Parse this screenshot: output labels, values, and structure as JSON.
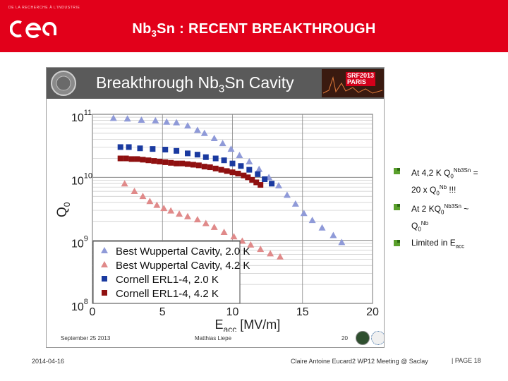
{
  "header": {
    "logo_small_text": "DE LA RECHERCHE À L'INDUSTRIE",
    "logo_text": "cea",
    "title_prefix": "Nb",
    "title_sub": "3",
    "title_suffix": "Sn : RECENT BREAKTHROUGH",
    "background_color": "#e2001a"
  },
  "slide": {
    "title_prefix": "Breakthrough Nb",
    "title_sub": "3",
    "title_suffix": "Sn Cavity",
    "badge_line1": "SRF2013",
    "badge_line2": "PARIS",
    "date": "September 25 2013",
    "author": "Matthias Liepe",
    "number": "20"
  },
  "chart_data": {
    "type": "scatter",
    "x_label": "E",
    "x_label_sub": "acc",
    "x_label_unit": "[MV/m]",
    "y_label": "Q",
    "y_label_sub": "0",
    "x_range": [
      0,
      20
    ],
    "y_log_range": [
      8,
      11
    ],
    "x_ticks": [
      "0",
      "5",
      "10",
      "15",
      "20"
    ],
    "y_ticks": [
      {
        "base": "10",
        "exp": "11",
        "value": 11
      },
      {
        "base": "10",
        "exp": "10",
        "value": 10
      },
      {
        "base": "10",
        "exp": "9",
        "value": 9
      },
      {
        "base": "10",
        "exp": "8",
        "value": 8
      }
    ],
    "series": [
      {
        "name": "Best Wuppertal Cavity, 2.0 K",
        "marker": "triangle",
        "color": "#8f9ad8",
        "points": [
          [
            1.5,
            10.94
          ],
          [
            2.5,
            10.93
          ],
          [
            3.5,
            10.91
          ],
          [
            4.5,
            10.9
          ],
          [
            5.3,
            10.88
          ],
          [
            6,
            10.87
          ],
          [
            6.8,
            10.82
          ],
          [
            7.5,
            10.75
          ],
          [
            8,
            10.7
          ],
          [
            8.7,
            10.62
          ],
          [
            9.3,
            10.54
          ],
          [
            9.9,
            10.45
          ],
          [
            10.5,
            10.35
          ],
          [
            11.2,
            10.25
          ],
          [
            11.9,
            10.13
          ],
          [
            12.6,
            10
          ],
          [
            13.3,
            9.87
          ],
          [
            13.9,
            9.72
          ],
          [
            14.5,
            9.58
          ],
          [
            15.1,
            9.43
          ],
          [
            15.7,
            9.32
          ],
          [
            16.4,
            9.2
          ],
          [
            17.2,
            9.08
          ],
          [
            17.8,
            8.97
          ]
        ]
      },
      {
        "name": "Best Wuppertal Cavity, 4.2 K",
        "marker": "triangle",
        "color": "#e08a8a",
        "points": [
          [
            2.3,
            9.9
          ],
          [
            3,
            9.78
          ],
          [
            3.6,
            9.7
          ],
          [
            4.1,
            9.62
          ],
          [
            4.6,
            9.56
          ],
          [
            5.1,
            9.51
          ],
          [
            5.6,
            9.47
          ],
          [
            6.2,
            9.42
          ],
          [
            6.8,
            9.38
          ],
          [
            7.5,
            9.33
          ],
          [
            8.1,
            9.27
          ],
          [
            8.7,
            9.21
          ],
          [
            9.4,
            9.13
          ],
          [
            10.1,
            9.06
          ],
          [
            10.7,
            8.99
          ],
          [
            11.3,
            8.93
          ],
          [
            12,
            8.86
          ],
          [
            12.7,
            8.79
          ],
          [
            13.4,
            8.74
          ]
        ]
      },
      {
        "name": "Cornell ERL1-4, 2.0 K",
        "marker": "square",
        "color": "#1a3aa0",
        "points": [
          [
            2,
            10.48
          ],
          [
            2.6,
            10.48
          ],
          [
            3.4,
            10.46
          ],
          [
            4.3,
            10.45
          ],
          [
            5.2,
            10.44
          ],
          [
            6,
            10.42
          ],
          [
            6.8,
            10.38
          ],
          [
            7.5,
            10.36
          ],
          [
            8.1,
            10.32
          ],
          [
            8.8,
            10.3
          ],
          [
            9.4,
            10.27
          ],
          [
            10,
            10.22
          ],
          [
            10.6,
            10.18
          ],
          [
            11.2,
            10.12
          ],
          [
            11.8,
            10.05
          ],
          [
            12.3,
            9.97
          ],
          [
            12.8,
            9.9
          ]
        ]
      },
      {
        "name": "Cornell ERL1-4, 4.2 K",
        "marker": "square",
        "color": "#8f1010",
        "points": [
          [
            2,
            10.3
          ],
          [
            2.4,
            10.3
          ],
          [
            2.8,
            10.29
          ],
          [
            3.2,
            10.29
          ],
          [
            3.6,
            10.28
          ],
          [
            4,
            10.27
          ],
          [
            4.4,
            10.26
          ],
          [
            4.8,
            10.25
          ],
          [
            5.2,
            10.24
          ],
          [
            5.6,
            10.23
          ],
          [
            6,
            10.22
          ],
          [
            6.4,
            10.22
          ],
          [
            6.8,
            10.21
          ],
          [
            7.2,
            10.2
          ],
          [
            7.6,
            10.19
          ],
          [
            8,
            10.17
          ],
          [
            8.4,
            10.16
          ],
          [
            8.8,
            10.14
          ],
          [
            9.2,
            10.12
          ],
          [
            9.6,
            10.1
          ],
          [
            10,
            10.08
          ],
          [
            10.4,
            10.06
          ],
          [
            10.8,
            10.03
          ],
          [
            11.1,
            10
          ],
          [
            11.4,
            9.96
          ],
          [
            11.7,
            9.92
          ],
          [
            12,
            9.88
          ]
        ]
      }
    ]
  },
  "bullets": [
    {
      "line1_a": "At 4,2 K Q",
      "line1_sub": "0",
      "line1_sup": "Nb3Sn",
      "line1_b": " =",
      "line2_a": "20 x Q",
      "line2_sub": "0",
      "line2_sup": "Nb",
      "line2_b": " !!!"
    },
    {
      "line1_a": "At 2 KQ",
      "line1_sub": "0",
      "line1_sup": "Nb3Sn",
      "line1_b": " ~",
      "line2_a": "Q",
      "line2_sub": "0",
      "line2_sup": "Nb",
      "line2_b": ""
    },
    {
      "line1_a": "Limited in E",
      "line1_sub": "acc",
      "line1_sup": "",
      "line1_b": ""
    }
  ],
  "footer": {
    "date": "2014-04-16",
    "center_text": "Claire Antoine Eucard2 WP12 Meeting @ Saclay",
    "page_label": "| PAGE 18"
  }
}
